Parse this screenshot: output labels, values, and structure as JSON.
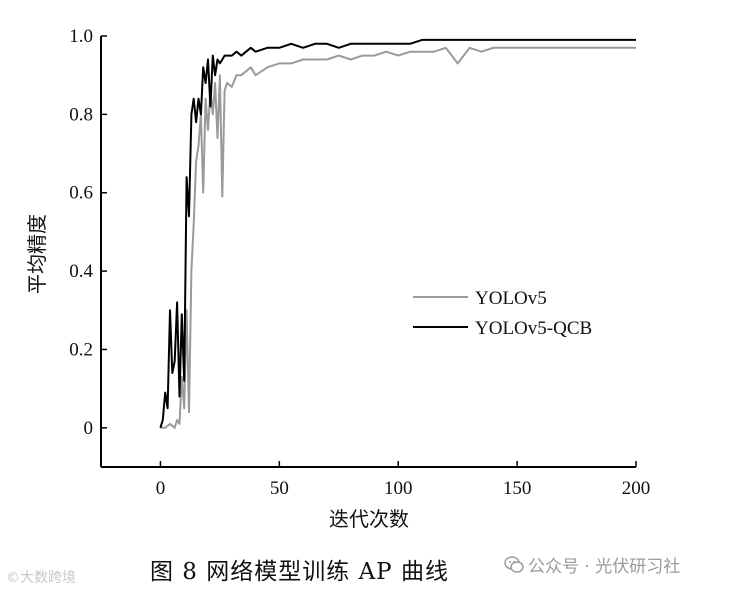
{
  "chart_data": {
    "type": "line",
    "xlabel": "迭代次数",
    "ylabel": "平均精度",
    "xlim": [
      -25,
      200
    ],
    "ylim": [
      -0.1,
      1.0
    ],
    "x_ticks": [
      0,
      50,
      100,
      150,
      200
    ],
    "y_ticks": [
      0,
      0.2,
      0.4,
      0.6,
      0.8,
      1.0
    ],
    "y_tick_labels": [
      "0",
      "0.2",
      "0.4",
      "0.6",
      "0.8",
      "1.0"
    ],
    "grid": false,
    "legend_position": "center-right",
    "series": [
      {
        "name": "YOLOv5",
        "color": "#9a9a9a",
        "x": [
          0,
          2,
          4,
          6,
          7,
          8,
          9,
          10,
          11,
          12,
          13,
          14,
          15,
          16,
          17,
          18,
          19,
          20,
          21,
          22,
          23,
          24,
          25,
          26,
          27,
          28,
          30,
          32,
          34,
          36,
          38,
          40,
          45,
          50,
          55,
          60,
          65,
          70,
          75,
          80,
          85,
          90,
          95,
          100,
          105,
          110,
          115,
          120,
          125,
          130,
          135,
          140,
          150,
          160,
          170,
          180,
          190,
          200
        ],
        "y": [
          0.0,
          0.0,
          0.01,
          0.0,
          0.02,
          0.01,
          0.13,
          0.05,
          0.3,
          0.04,
          0.4,
          0.52,
          0.68,
          0.72,
          0.8,
          0.6,
          0.84,
          0.76,
          0.86,
          0.8,
          0.88,
          0.74,
          0.9,
          0.59,
          0.86,
          0.88,
          0.87,
          0.9,
          0.9,
          0.91,
          0.92,
          0.9,
          0.92,
          0.93,
          0.93,
          0.94,
          0.94,
          0.94,
          0.95,
          0.94,
          0.95,
          0.95,
          0.96,
          0.95,
          0.96,
          0.96,
          0.96,
          0.97,
          0.93,
          0.97,
          0.96,
          0.97,
          0.97,
          0.97,
          0.97,
          0.97,
          0.97,
          0.97
        ]
      },
      {
        "name": "YOLOv5-QCB",
        "color": "#000000",
        "x": [
          0,
          1,
          2,
          3,
          4,
          5,
          6,
          7,
          8,
          9,
          10,
          11,
          12,
          13,
          14,
          15,
          16,
          17,
          18,
          19,
          20,
          21,
          22,
          23,
          24,
          25,
          26,
          27,
          28,
          30,
          32,
          34,
          36,
          38,
          40,
          45,
          50,
          55,
          60,
          65,
          70,
          75,
          80,
          85,
          90,
          95,
          100,
          105,
          110,
          120,
          130,
          140,
          150,
          160,
          170,
          180,
          190,
          200
        ],
        "y": [
          0.0,
          0.02,
          0.09,
          0.05,
          0.3,
          0.14,
          0.17,
          0.32,
          0.08,
          0.29,
          0.12,
          0.64,
          0.54,
          0.8,
          0.84,
          0.78,
          0.84,
          0.8,
          0.92,
          0.88,
          0.94,
          0.82,
          0.95,
          0.9,
          0.94,
          0.93,
          0.94,
          0.95,
          0.95,
          0.95,
          0.96,
          0.95,
          0.96,
          0.97,
          0.96,
          0.97,
          0.97,
          0.98,
          0.97,
          0.98,
          0.98,
          0.97,
          0.98,
          0.98,
          0.98,
          0.98,
          0.98,
          0.98,
          0.99,
          0.99,
          0.99,
          0.99,
          0.99,
          0.99,
          0.99,
          0.99,
          0.99,
          0.99
        ]
      }
    ]
  },
  "caption": "图 8   网络模型训练 AP 曲线",
  "watermark": {
    "left": "©大数跨境",
    "right": "公众号 · 光伏研习社",
    "icon": "wechat-icon"
  }
}
